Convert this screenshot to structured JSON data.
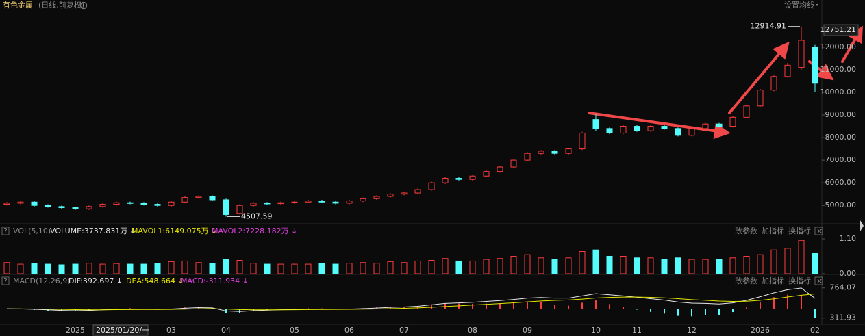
{
  "chart_data": {
    "type": "candlestick",
    "title": "有色金属",
    "subtitle": "(日线,前复权)",
    "categories": [
      null,
      null,
      null,
      null,
      null,
      "2025",
      null,
      null,
      null,
      null,
      null,
      null,
      "03",
      null,
      null,
      null,
      "04",
      null,
      null,
      null,
      null,
      "05",
      null,
      null,
      null,
      "06",
      null,
      null,
      null,
      "07",
      null,
      null,
      null,
      null,
      "08",
      null,
      null,
      null,
      "09",
      null,
      null,
      null,
      null,
      "10",
      null,
      null,
      "11",
      null,
      null,
      null,
      "12",
      null,
      null,
      null,
      null,
      "2026",
      null,
      null,
      null,
      "02"
    ],
    "open": [
      5050,
      5100,
      5150,
      5000,
      4950,
      4900,
      4850,
      4950,
      5050,
      5120,
      5100,
      5050,
      5000,
      5150,
      5350,
      5400,
      5250,
      4650,
      5000,
      5100,
      5080,
      5120,
      5150,
      5200,
      5150,
      5100,
      5200,
      5300,
      5400,
      5500,
      5550,
      5700,
      6000,
      6200,
      6150,
      6300,
      6500,
      6700,
      7000,
      7300,
      7400,
      7300,
      7500,
      8800,
      8400,
      8200,
      8500,
      8300,
      8500,
      8400,
      8100,
      8400,
      8600,
      8500,
      8900,
      9400,
      10100,
      10700,
      11100,
      12000
    ],
    "high": [
      5150,
      5200,
      5200,
      5050,
      5000,
      4950,
      5000,
      5100,
      5170,
      5170,
      5150,
      5100,
      5200,
      5400,
      5450,
      5450,
      5300,
      5050,
      5150,
      5150,
      5170,
      5200,
      5250,
      5250,
      5200,
      5250,
      5350,
      5450,
      5550,
      5600,
      5750,
      6050,
      6250,
      6250,
      6350,
      6550,
      6750,
      7050,
      7350,
      7450,
      7450,
      7550,
      8250,
      9050,
      8450,
      8550,
      8550,
      8550,
      8550,
      8450,
      8450,
      8650,
      8650,
      8950,
      9450,
      10150,
      10750,
      11300,
      12914.91,
      12100
    ],
    "low": [
      5000,
      5050,
      4950,
      4900,
      4850,
      4800,
      4800,
      4900,
      5000,
      5050,
      5000,
      4950,
      4950,
      5100,
      5300,
      5200,
      4507.59,
      4600,
      4950,
      5030,
      5030,
      5070,
      5100,
      5100,
      5050,
      5050,
      5150,
      5250,
      5350,
      5450,
      5500,
      5650,
      5950,
      6100,
      6100,
      6250,
      6450,
      6650,
      6950,
      7250,
      7250,
      7250,
      7450,
      8300,
      8150,
      8150,
      8250,
      8250,
      8350,
      8050,
      8050,
      8350,
      8450,
      8450,
      8850,
      9350,
      10050,
      10650,
      11000,
      10000
    ],
    "close": [
      5100,
      5150,
      5000,
      4950,
      4900,
      4850,
      4950,
      5050,
      5120,
      5100,
      5050,
      5000,
      5150,
      5350,
      5400,
      5250,
      4600,
      5000,
      5100,
      5080,
      5120,
      5150,
      5200,
      5150,
      5100,
      5200,
      5300,
      5400,
      5500,
      5550,
      5700,
      6000,
      6200,
      6150,
      6300,
      6500,
      6700,
      7000,
      7300,
      7400,
      7300,
      7500,
      8200,
      8400,
      8200,
      8500,
      8300,
      8500,
      8400,
      8100,
      8400,
      8600,
      8500,
      8900,
      9400,
      10100,
      10700,
      11200,
      12300,
      10400
    ],
    "up_color": "#ff3c3c",
    "down_color": "#54fcfc",
    "ylim": [
      4250,
      13600
    ],
    "yticks": [
      {
        "value": 5000,
        "label": "5000.00"
      },
      {
        "value": 6000,
        "label": "6000.00"
      },
      {
        "value": 7000,
        "label": "7000.00"
      },
      {
        "value": 8000,
        "label": "8000.00"
      },
      {
        "value": 9000,
        "label": "9000.00"
      },
      {
        "value": 10000,
        "label": "10000.00"
      },
      {
        "value": 11000,
        "label": "11000.00"
      },
      {
        "value": 12000,
        "label": "12000.00"
      }
    ],
    "cursor_price": 12751.21,
    "cursor_date": "2025/01/20/一",
    "settings_label": "设置均线",
    "volume": {
      "name": "VOL(5,10)",
      "volume_text": "VOLUME:3737.831万 ↓",
      "mavol1_text": "MAVOL1:6149.075万 ↓",
      "mavol2_text": "MAVOL2:7228.182万 ↓",
      "values": [
        0.35,
        0.3,
        0.32,
        0.3,
        0.28,
        0.3,
        0.33,
        0.3,
        0.32,
        0.3,
        0.3,
        0.32,
        0.38,
        0.4,
        0.35,
        0.33,
        0.45,
        0.42,
        0.33,
        0.3,
        0.3,
        0.3,
        0.3,
        0.32,
        0.3,
        0.33,
        0.35,
        0.33,
        0.38,
        0.35,
        0.4,
        0.42,
        0.48,
        0.4,
        0.4,
        0.45,
        0.48,
        0.55,
        0.6,
        0.5,
        0.45,
        0.5,
        0.7,
        0.75,
        0.55,
        0.55,
        0.5,
        0.5,
        0.45,
        0.5,
        0.45,
        0.45,
        0.45,
        0.5,
        0.55,
        0.6,
        0.75,
        0.8,
        1.05,
        0.65
      ],
      "ylim": [
        0,
        1.25
      ],
      "yticks": [
        {
          "value": 0,
          "label": "0.00"
        },
        {
          "value": 1.1,
          "label": "1.10"
        }
      ]
    },
    "macd": {
      "name": "MACD(12,26,9)",
      "dif_text": "DIF:392.697 ↓",
      "dea_text": "DEA:548.664 ↓",
      "macd_text": "MACD:-311.934 ↓",
      "dif": [
        20,
        15,
        0,
        -20,
        -40,
        -50,
        -40,
        -20,
        0,
        10,
        5,
        -5,
        10,
        40,
        60,
        50,
        -60,
        -80,
        -50,
        -30,
        -15,
        0,
        10,
        10,
        5,
        10,
        25,
        45,
        70,
        85,
        110,
        160,
        210,
        230,
        250,
        280,
        310,
        350,
        400,
        420,
        400,
        400,
        480,
        560,
        520,
        480,
        430,
        380,
        330,
        260,
        220,
        210,
        190,
        230,
        320,
        450,
        590,
        700,
        760,
        392.697
      ],
      "dea": [
        15,
        15,
        12,
        6,
        -4,
        -13,
        -18,
        -18,
        -14,
        -9,
        -6,
        -6,
        -3,
        6,
        17,
        24,
        7,
        -10,
        -18,
        -20,
        -19,
        -15,
        -10,
        -6,
        -4,
        -1,
        4,
        12,
        24,
        36,
        51,
        73,
        100,
        126,
        151,
        177,
        203,
        233,
        266,
        297,
        318,
        334,
        363,
        402,
        426,
        437,
        436,
        427,
        408,
        378,
        346,
        319,
        293,
        280,
        288,
        320,
        374,
        439,
        503,
        548.664
      ],
      "values": [
        10,
        0,
        -24,
        -52,
        -72,
        -74,
        -44,
        -4,
        28,
        38,
        22,
        2,
        26,
        68,
        86,
        52,
        -134,
        -140,
        -64,
        -20,
        8,
        30,
        40,
        32,
        18,
        22,
        42,
        66,
        92,
        98,
        118,
        174,
        220,
        208,
        198,
        206,
        214,
        234,
        268,
        246,
        164,
        132,
        234,
        316,
        188,
        86,
        -12,
        -94,
        -156,
        -236,
        -252,
        -218,
        -206,
        -100,
        64,
        260,
        432,
        522,
        514,
        -311.934
      ],
      "dif_color": "#e8e8e8",
      "dea_color": "#e6e600",
      "ylim": [
        -490,
        1027
      ],
      "yticks": [
        -311.93,
        764.07
      ]
    }
  },
  "ui": {
    "help": "?",
    "close": "×",
    "edit_params": "改参数",
    "add_indicator": "加指标",
    "switch_indicator": "换指标"
  }
}
